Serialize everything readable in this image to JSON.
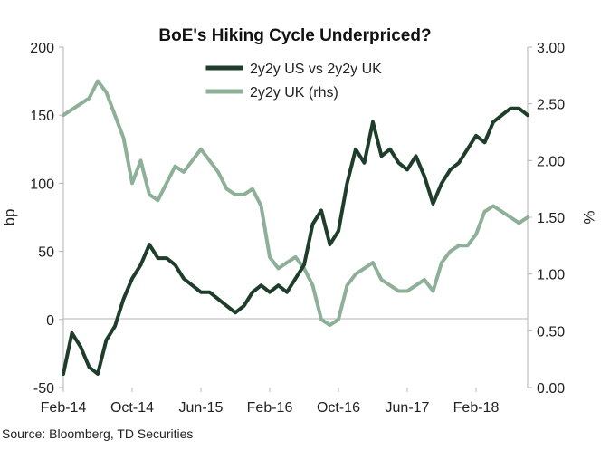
{
  "chart_data": {
    "type": "line",
    "title": "BoE's Hiking Cycle Underpriced?",
    "ylabel_left": "bp",
    "ylabel_right": "%",
    "source": "Source: Bloomberg, TD Securities",
    "x_ticks": [
      "Feb-14",
      "Oct-14",
      "Jun-15",
      "Feb-16",
      "Oct-16",
      "Jun-17",
      "Feb-18"
    ],
    "x_range": [
      "2014-02",
      "2018-08"
    ],
    "y_left": {
      "min": -50,
      "max": 200,
      "ticks": [
        "-50",
        "0",
        "50",
        "100",
        "150",
        "200"
      ]
    },
    "y_right": {
      "min": 0,
      "max": 3,
      "ticks": [
        "0.00",
        "0.50",
        "1.00",
        "1.50",
        "2.00",
        "2.50",
        "3.00"
      ]
    },
    "legend_position": "top-center",
    "grid": false,
    "series": [
      {
        "name": "2y2y US vs 2y2y UK",
        "axis": "left",
        "color": "#1e3d2b",
        "x": [
          "2014-02",
          "2014-03",
          "2014-04",
          "2014-05",
          "2014-06",
          "2014-07",
          "2014-08",
          "2014-09",
          "2014-10",
          "2014-11",
          "2014-12",
          "2015-01",
          "2015-02",
          "2015-03",
          "2015-04",
          "2015-05",
          "2015-06",
          "2015-07",
          "2015-08",
          "2015-09",
          "2015-10",
          "2015-11",
          "2015-12",
          "2016-01",
          "2016-02",
          "2016-03",
          "2016-04",
          "2016-05",
          "2016-06",
          "2016-07",
          "2016-08",
          "2016-09",
          "2016-10",
          "2016-11",
          "2016-12",
          "2017-01",
          "2017-02",
          "2017-03",
          "2017-04",
          "2017-05",
          "2017-06",
          "2017-07",
          "2017-08",
          "2017-09",
          "2017-10",
          "2017-11",
          "2017-12",
          "2018-01",
          "2018-02",
          "2018-03",
          "2018-04",
          "2018-05",
          "2018-06",
          "2018-07",
          "2018-08"
        ],
        "values": [
          -40,
          -10,
          -20,
          -35,
          -40,
          -15,
          -5,
          15,
          30,
          40,
          55,
          45,
          45,
          40,
          30,
          25,
          20,
          20,
          15,
          10,
          5,
          10,
          20,
          25,
          20,
          25,
          20,
          30,
          40,
          70,
          80,
          55,
          65,
          100,
          125,
          115,
          145,
          120,
          125,
          115,
          110,
          120,
          105,
          85,
          100,
          110,
          115,
          125,
          135,
          130,
          145,
          150,
          155,
          155,
          150
        ]
      },
      {
        "name": "2y2y UK (rhs)",
        "axis": "right",
        "color": "#8eaf98",
        "x": [
          "2014-02",
          "2014-03",
          "2014-04",
          "2014-05",
          "2014-06",
          "2014-07",
          "2014-08",
          "2014-09",
          "2014-10",
          "2014-11",
          "2014-12",
          "2015-01",
          "2015-02",
          "2015-03",
          "2015-04",
          "2015-05",
          "2015-06",
          "2015-07",
          "2015-08",
          "2015-09",
          "2015-10",
          "2015-11",
          "2015-12",
          "2016-01",
          "2016-02",
          "2016-03",
          "2016-04",
          "2016-05",
          "2016-06",
          "2016-07",
          "2016-08",
          "2016-09",
          "2016-10",
          "2016-11",
          "2016-12",
          "2017-01",
          "2017-02",
          "2017-03",
          "2017-04",
          "2017-05",
          "2017-06",
          "2017-07",
          "2017-08",
          "2017-09",
          "2017-10",
          "2017-11",
          "2017-12",
          "2018-01",
          "2018-02",
          "2018-03",
          "2018-04",
          "2018-05",
          "2018-06",
          "2018-07",
          "2018-08"
        ],
        "values": [
          2.4,
          2.45,
          2.5,
          2.55,
          2.7,
          2.6,
          2.4,
          2.2,
          1.8,
          2.0,
          1.7,
          1.65,
          1.8,
          1.95,
          1.9,
          2.0,
          2.1,
          2.0,
          1.9,
          1.75,
          1.7,
          1.7,
          1.75,
          1.6,
          1.15,
          1.05,
          1.1,
          1.15,
          1.05,
          0.9,
          0.6,
          0.55,
          0.6,
          0.9,
          1.0,
          1.05,
          1.1,
          0.95,
          0.9,
          0.85,
          0.85,
          0.9,
          0.95,
          0.85,
          1.1,
          1.2,
          1.25,
          1.25,
          1.35,
          1.55,
          1.6,
          1.55,
          1.5,
          1.45,
          1.5
        ]
      }
    ]
  }
}
